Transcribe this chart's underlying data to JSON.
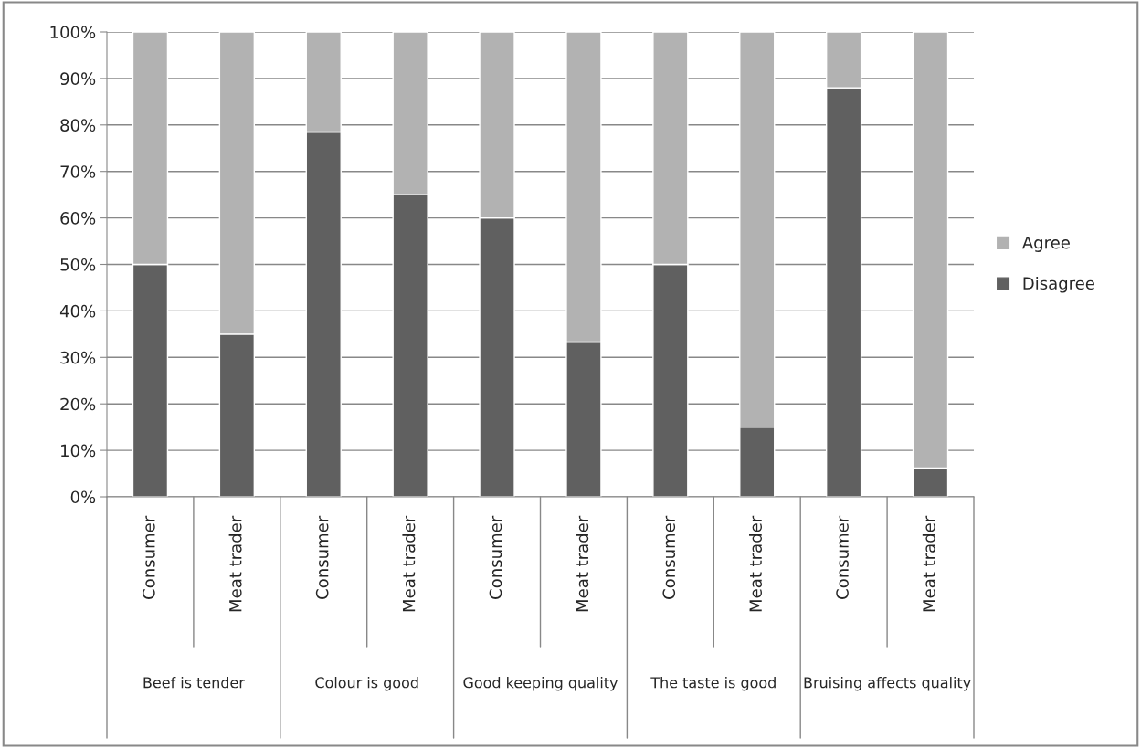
{
  "chart_data": {
    "type": "bar",
    "stacked": true,
    "categories": [
      "Consumer",
      "Meat trader",
      "Consumer",
      "Meat trader",
      "Consumer",
      "Meat trader",
      "Consumer",
      "Meat trader",
      "Consumer",
      "Meat trader"
    ],
    "series": [
      {
        "name": "Disagree",
        "color": "#606060",
        "values": [
          50,
          35,
          78.5,
          65,
          60,
          33.3,
          50,
          15,
          88,
          6.2
        ]
      },
      {
        "name": "Agree",
        "color": "#b2b2b2",
        "values": [
          50,
          65,
          21.5,
          35,
          40,
          66.7,
          50,
          85,
          12,
          93.8
        ]
      }
    ],
    "ylim": [
      0,
      100
    ],
    "yticks": [
      {
        "value": 0,
        "label": "0%"
      },
      {
        "value": 10,
        "label": "10%"
      },
      {
        "value": 20,
        "label": "20%"
      },
      {
        "value": 30,
        "label": "30%"
      },
      {
        "value": 40,
        "label": "40%"
      },
      {
        "value": 50,
        "label": "50%"
      },
      {
        "value": 60,
        "label": "60%"
      },
      {
        "value": 70,
        "label": "70%"
      },
      {
        "value": 80,
        "label": "80%"
      },
      {
        "value": 90,
        "label": "90%"
      },
      {
        "value": 100,
        "label": "100%"
      }
    ],
    "grid": "y",
    "legend": "right",
    "annotations": [
      "Beef is tender",
      "Colour is good",
      "Good keeping quality",
      "The taste is good",
      "Bruising affects quality"
    ]
  }
}
